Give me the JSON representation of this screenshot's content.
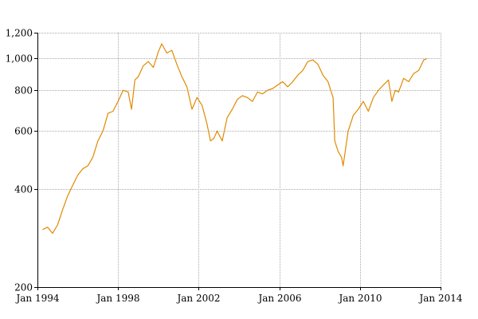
{
  "chart_data": {
    "type": "line",
    "title": "",
    "xlabel": "",
    "ylabel": "",
    "y_scale": "log",
    "grid": true,
    "legend": "none",
    "line_color": "#e08a00",
    "grid_color": "#aaaaaa",
    "xlim": [
      "1994-01",
      "2014-01"
    ],
    "ylim": [
      200,
      1200
    ],
    "x_ticks": [
      {
        "value": "1994-01",
        "label": "Jan 1994"
      },
      {
        "value": "1998-01",
        "label": "Jan 1998"
      },
      {
        "value": "2002-01",
        "label": "Jan 2002"
      },
      {
        "value": "2006-01",
        "label": "Jan 2006"
      },
      {
        "value": "2010-01",
        "label": "Jan 2010"
      },
      {
        "value": "2014-01",
        "label": "Jan 2014"
      }
    ],
    "y_ticks": [
      {
        "value": 200,
        "label": "200"
      },
      {
        "value": 400,
        "label": "400"
      },
      {
        "value": 600,
        "label": "600"
      },
      {
        "value": 800,
        "label": "800"
      },
      {
        "value": 1000,
        "label": "1,000"
      },
      {
        "value": 1200,
        "label": "1,200"
      }
    ],
    "series": [
      {
        "points": [
          [
            "1994-04",
            300
          ],
          [
            "1994-07",
            305
          ],
          [
            "1994-10",
            292
          ],
          [
            "1995-01",
            310
          ],
          [
            "1995-04",
            345
          ],
          [
            "1995-07",
            380
          ],
          [
            "1995-10",
            410
          ],
          [
            "1996-01",
            440
          ],
          [
            "1996-04",
            460
          ],
          [
            "1996-07",
            470
          ],
          [
            "1996-10",
            500
          ],
          [
            "1997-01",
            560
          ],
          [
            "1997-04",
            600
          ],
          [
            "1997-07",
            680
          ],
          [
            "1997-10",
            690
          ],
          [
            "1998-01",
            740
          ],
          [
            "1998-04",
            800
          ],
          [
            "1998-07",
            790
          ],
          [
            "1998-09",
            700
          ],
          [
            "1998-11",
            860
          ],
          [
            "1999-01",
            880
          ],
          [
            "1999-04",
            950
          ],
          [
            "1999-07",
            980
          ],
          [
            "1999-10",
            940
          ],
          [
            "2000-01",
            1050
          ],
          [
            "2000-03",
            1110
          ],
          [
            "2000-06",
            1040
          ],
          [
            "2000-09",
            1060
          ],
          [
            "2000-12",
            960
          ],
          [
            "2001-03",
            880
          ],
          [
            "2001-06",
            820
          ],
          [
            "2001-09",
            700
          ],
          [
            "2001-12",
            760
          ],
          [
            "2002-03",
            720
          ],
          [
            "2002-06",
            630
          ],
          [
            "2002-08",
            560
          ],
          [
            "2002-10",
            570
          ],
          [
            "2002-12",
            600
          ],
          [
            "2003-03",
            560
          ],
          [
            "2003-06",
            660
          ],
          [
            "2003-09",
            700
          ],
          [
            "2003-12",
            750
          ],
          [
            "2004-03",
            770
          ],
          [
            "2004-06",
            760
          ],
          [
            "2004-09",
            740
          ],
          [
            "2004-12",
            790
          ],
          [
            "2005-03",
            780
          ],
          [
            "2005-06",
            800
          ],
          [
            "2005-09",
            810
          ],
          [
            "2005-12",
            830
          ],
          [
            "2006-03",
            850
          ],
          [
            "2006-06",
            820
          ],
          [
            "2006-09",
            850
          ],
          [
            "2006-12",
            890
          ],
          [
            "2007-03",
            920
          ],
          [
            "2007-06",
            980
          ],
          [
            "2007-09",
            990
          ],
          [
            "2007-12",
            960
          ],
          [
            "2008-03",
            890
          ],
          [
            "2008-06",
            850
          ],
          [
            "2008-09",
            760
          ],
          [
            "2008-10",
            560
          ],
          [
            "2008-12",
            520
          ],
          [
            "2009-02",
            500
          ],
          [
            "2009-03",
            470
          ],
          [
            "2009-06",
            600
          ],
          [
            "2009-09",
            670
          ],
          [
            "2009-12",
            700
          ],
          [
            "2010-03",
            740
          ],
          [
            "2010-06",
            690
          ],
          [
            "2010-09",
            760
          ],
          [
            "2010-12",
            800
          ],
          [
            "2011-03",
            830
          ],
          [
            "2011-06",
            860
          ],
          [
            "2011-08",
            740
          ],
          [
            "2011-10",
            800
          ],
          [
            "2011-12",
            790
          ],
          [
            "2012-03",
            870
          ],
          [
            "2012-06",
            850
          ],
          [
            "2012-09",
            900
          ],
          [
            "2012-12",
            920
          ],
          [
            "2013-03",
            990
          ],
          [
            "2013-05",
            1000
          ]
        ]
      }
    ]
  }
}
